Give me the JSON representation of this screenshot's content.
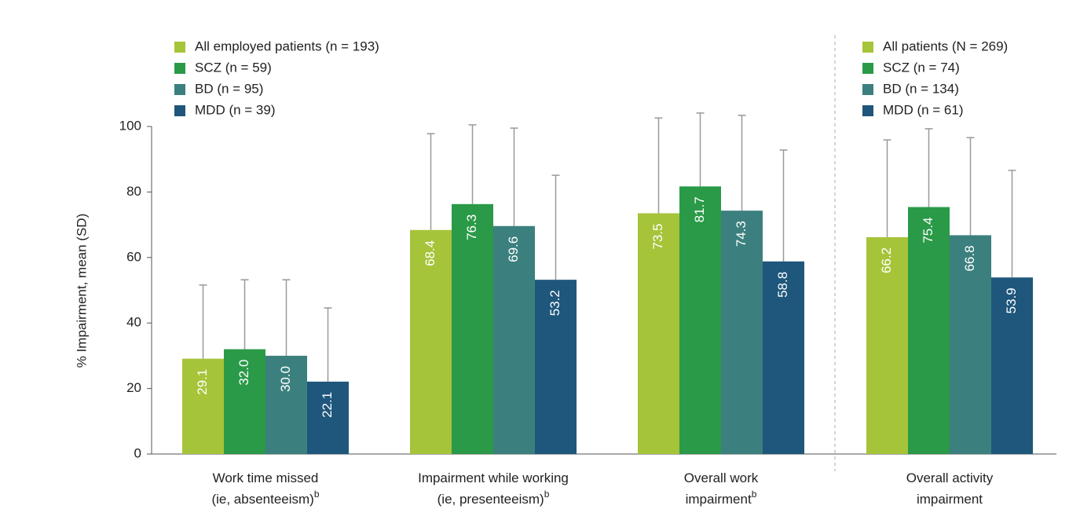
{
  "chart_data": [
    {
      "type": "bar",
      "y_label": "% Impairment, mean (SD)",
      "categories": [
        [
          "Work time missed",
          "(ie, absenteeism)"
        ],
        [
          "Impairment while working",
          "(ie, presenteeism)"
        ],
        [
          "Overall work",
          "impairment"
        ]
      ],
      "footnotes": [
        "b",
        "b",
        "b"
      ],
      "ylim": [
        0,
        100
      ],
      "yticks": [
        0,
        20,
        40,
        60,
        80,
        100
      ],
      "series": [
        {
          "name": "All employed patients (n = 193)",
          "color": "#a6c43a",
          "values": [
            29.1,
            68.4,
            73.5
          ],
          "value_labels": [
            "29.1",
            "68.4",
            "73.5"
          ],
          "errors": [
            22.5,
            29.4,
            29.1
          ]
        },
        {
          "name": "SCZ (n = 59)",
          "color": "#2a9a48",
          "values": [
            32.0,
            76.3,
            81.7
          ],
          "value_labels": [
            "32.0",
            "76.3",
            "81.7"
          ],
          "errors": [
            21.2,
            24.2,
            22.4
          ]
        },
        {
          "name": "BD (n = 95)",
          "color": "#3b807e",
          "values": [
            30.0,
            69.6,
            74.3
          ],
          "value_labels": [
            "30.0",
            "69.6",
            "74.3"
          ],
          "errors": [
            23.2,
            29.9,
            29.1
          ]
        },
        {
          "name": "MDD (n = 39)",
          "color": "#1f567c",
          "values": [
            22.1,
            53.2,
            58.8
          ],
          "value_labels": [
            "22.1",
            "53.2",
            "58.8"
          ],
          "errors": [
            22.5,
            31.9,
            34.0
          ]
        }
      ]
    },
    {
      "type": "bar",
      "categories": [
        [
          "Overall activity",
          "impairment"
        ]
      ],
      "ylim": [
        0,
        100
      ],
      "series": [
        {
          "name": "All patients (N = 269)",
          "color": "#a6c43a",
          "values": [
            66.2
          ],
          "value_labels": [
            "66.2"
          ],
          "errors": [
            29.7
          ]
        },
        {
          "name": "SCZ (n = 74)",
          "color": "#2a9a48",
          "values": [
            75.4
          ],
          "value_labels": [
            "75.4"
          ],
          "errors": [
            23.9
          ]
        },
        {
          "name": "BD (n = 134)",
          "color": "#3b807e",
          "values": [
            66.8
          ],
          "value_labels": [
            "66.8"
          ],
          "errors": [
            29.8
          ]
        },
        {
          "name": "MDD (n = 61)",
          "color": "#1f567c",
          "values": [
            53.9
          ],
          "value_labels": [
            "53.9"
          ],
          "errors": [
            32.7
          ]
        }
      ]
    }
  ]
}
